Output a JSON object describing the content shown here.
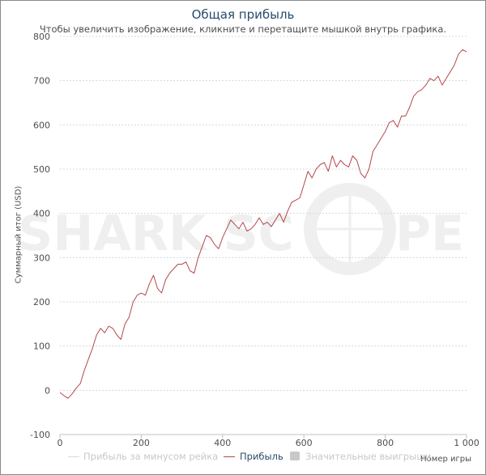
{
  "chart_data": {
    "type": "line",
    "title": "Общая прибыль",
    "subtitle": "Чтобы увеличить изображение, кликните и перетащите мышкой внутрь графика.",
    "xlabel": "Номер игры",
    "ylabel": "Суммарный итог (USD)",
    "xlim": [
      0,
      1000
    ],
    "ylim": [
      -100,
      800
    ],
    "x_ticks": [
      0,
      200,
      400,
      600,
      800,
      "1 000"
    ],
    "y_ticks": [
      -100,
      0,
      100,
      200,
      300,
      400,
      500,
      600,
      700,
      800
    ],
    "grid": "horizontal dashed",
    "legend_position": "bottom",
    "series": [
      {
        "name": "Прибыль за минусом рейка",
        "visible": false,
        "color": "#d9d9d9",
        "values": []
      },
      {
        "name": "Прибыль",
        "visible": true,
        "color": "#b5484a",
        "x": [
          0,
          10,
          20,
          30,
          40,
          50,
          60,
          70,
          80,
          90,
          100,
          110,
          120,
          130,
          140,
          150,
          160,
          170,
          180,
          190,
          200,
          210,
          220,
          230,
          240,
          250,
          260,
          270,
          280,
          290,
          300,
          310,
          320,
          330,
          340,
          350,
          360,
          370,
          380,
          390,
          400,
          410,
          420,
          430,
          440,
          450,
          460,
          470,
          480,
          490,
          500,
          510,
          520,
          530,
          540,
          550,
          560,
          570,
          580,
          590,
          600,
          610,
          620,
          630,
          640,
          650,
          660,
          670,
          680,
          690,
          700,
          710,
          720,
          730,
          740,
          750,
          760,
          770,
          780,
          790,
          800,
          810,
          820,
          830,
          840,
          850,
          860,
          870,
          880,
          890,
          900,
          910,
          920,
          930,
          940,
          950,
          960,
          970,
          980,
          990,
          1000
        ],
        "values": [
          -5,
          -12,
          -18,
          -8,
          5,
          15,
          45,
          70,
          95,
          125,
          140,
          130,
          145,
          140,
          125,
          115,
          150,
          165,
          200,
          215,
          220,
          215,
          240,
          260,
          230,
          220,
          250,
          265,
          275,
          285,
          285,
          290,
          270,
          265,
          300,
          325,
          350,
          345,
          330,
          320,
          345,
          365,
          385,
          375,
          365,
          380,
          360,
          365,
          375,
          390,
          375,
          380,
          370,
          385,
          400,
          380,
          405,
          425,
          430,
          435,
          465,
          495,
          480,
          500,
          510,
          515,
          495,
          530,
          505,
          520,
          510,
          505,
          530,
          520,
          490,
          480,
          500,
          540,
          555,
          570,
          585,
          605,
          610,
          595,
          620,
          620,
          640,
          665,
          675,
          680,
          690,
          705,
          700,
          710,
          690,
          705,
          720,
          735,
          760,
          770,
          765
        ]
      },
      {
        "name": "Значительные выигрыши",
        "visible": false,
        "color": "#c8c8c8",
        "values": []
      }
    ]
  },
  "watermark": {
    "text_left": "SHARK SC",
    "text_right": "PE"
  }
}
